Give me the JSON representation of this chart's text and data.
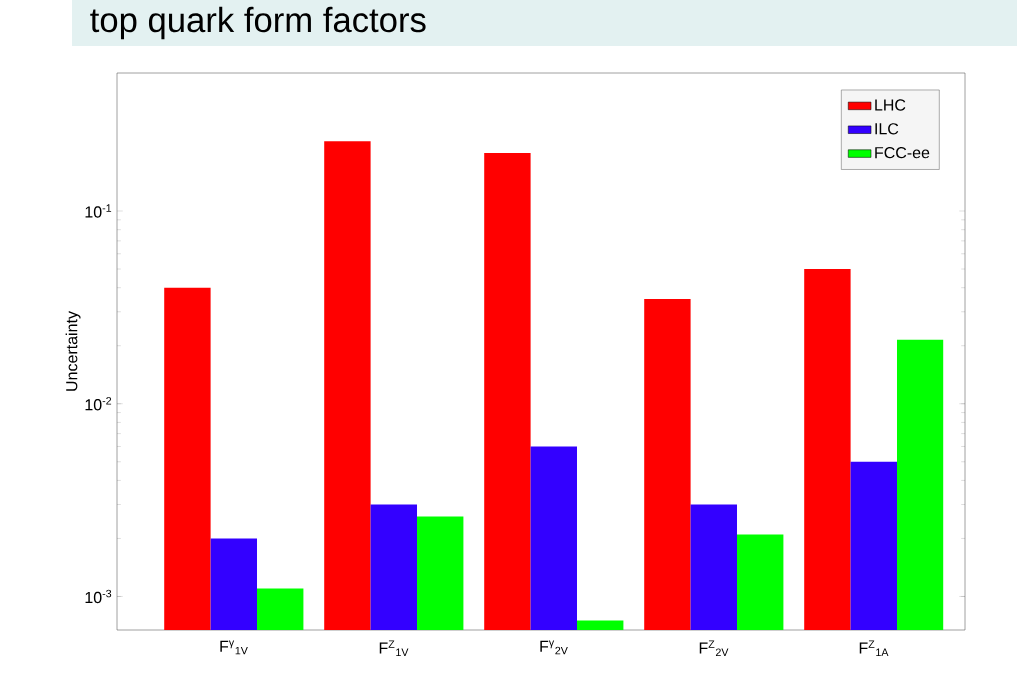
{
  "chart_data": {
    "type": "bar",
    "title": "top quark form factors",
    "ylabel": "Uncertainty",
    "categories": [
      "F$^{γ}$$_{1V}$",
      "F$^{Z}$$_{1V}$",
      "F$^{γ}$$_{2V}$",
      "F$^{Z}$$_{2V}$",
      "F$^{Z}$$_{1A}$"
    ],
    "series": [
      {
        "name": "LHC",
        "color": "#ff0000",
        "values": [
          0.04,
          0.23,
          0.2,
          0.035,
          0.05
        ]
      },
      {
        "name": "ILC",
        "color": "#3300ff",
        "values": [
          0.002,
          0.003,
          0.006,
          0.003,
          0.005
        ]
      },
      {
        "name": "FCC-ee",
        "color": "#00ff00",
        "values": [
          0.0011,
          0.0026,
          0.00075,
          0.0021,
          0.0215
        ]
      }
    ],
    "log": "y",
    "ylim": [
      0.00067,
      0.52
    ],
    "yticks": [
      {
        "value": 0.001,
        "label": "10$^{-3}$"
      },
      {
        "value": 0.01,
        "label": "10$^{-2}$"
      },
      {
        "value": 0.1,
        "label": "10$^{-1}$"
      }
    ],
    "grid": false,
    "legend": "top right"
  }
}
